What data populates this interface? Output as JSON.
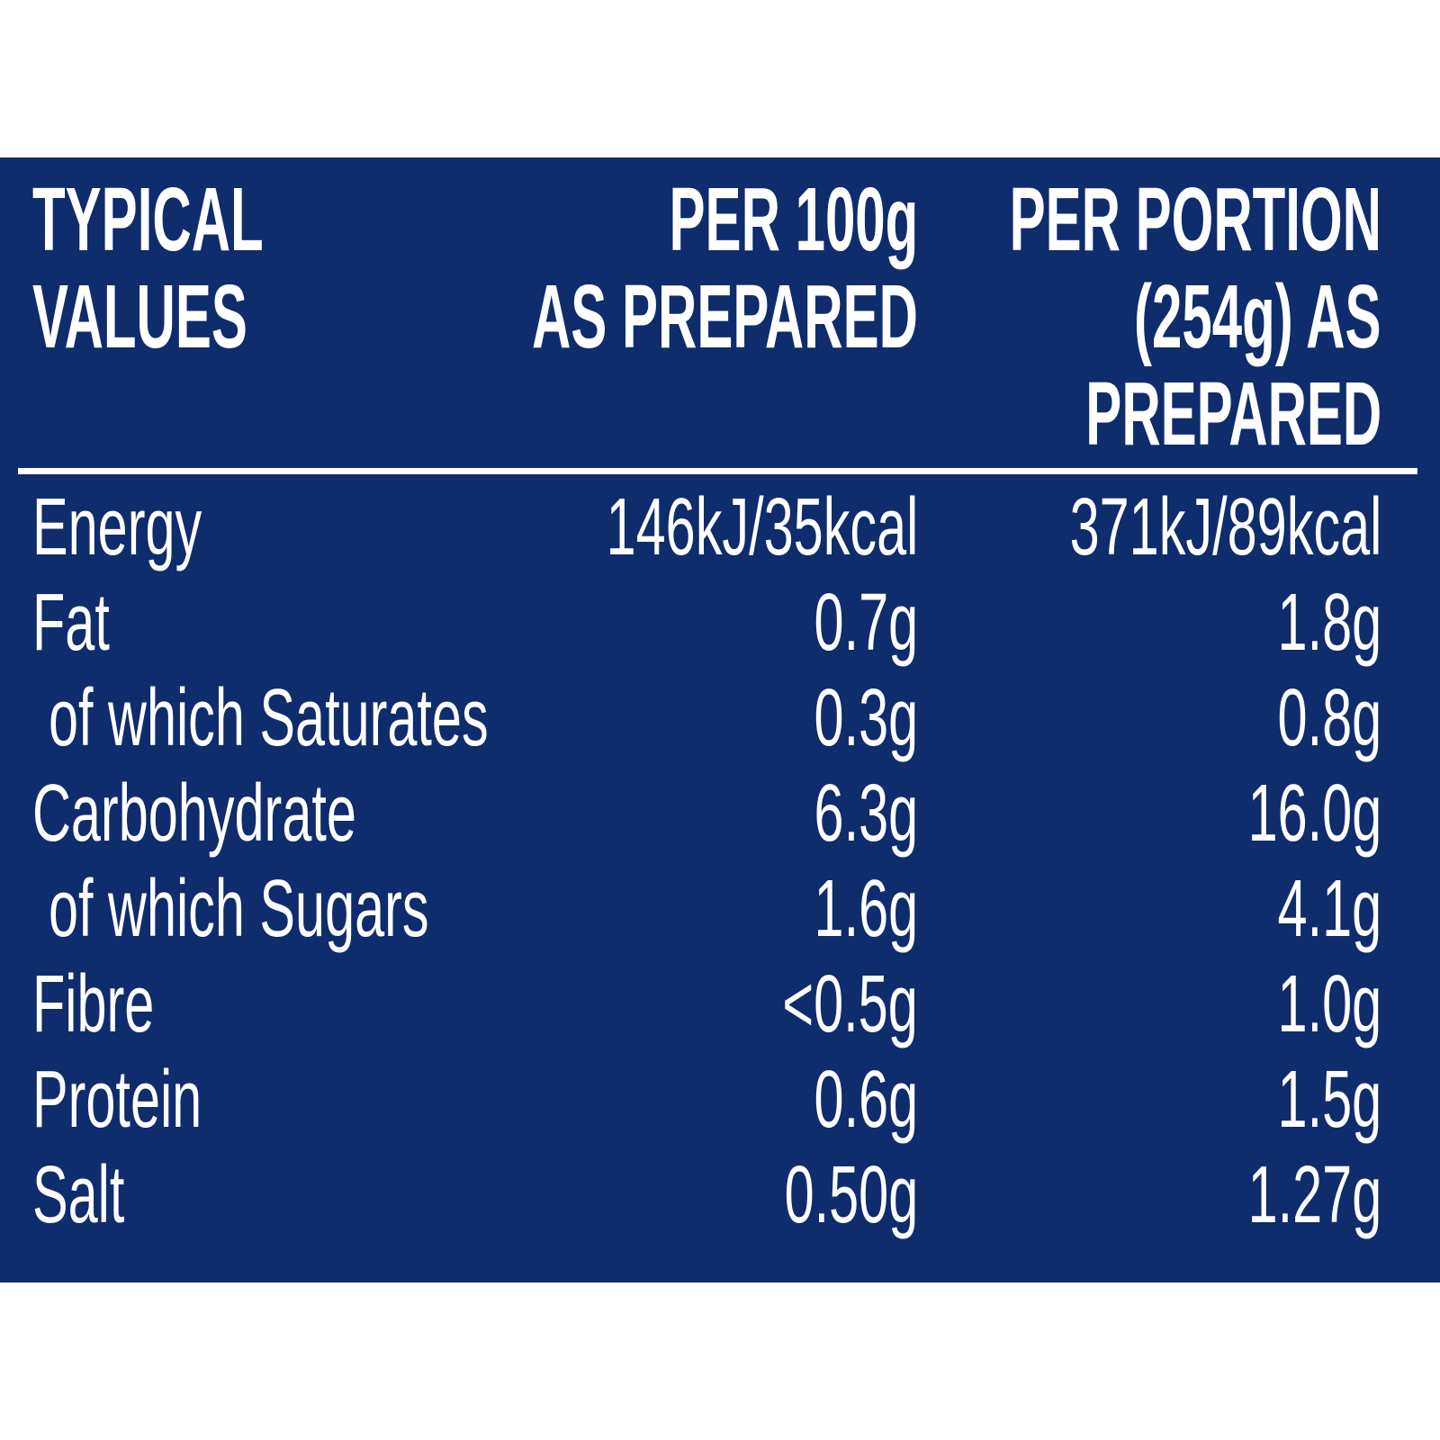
{
  "table": {
    "header": [
      [
        "TYPICAL",
        "VALUES"
      ],
      [
        "PER 100g",
        "AS PREPARED"
      ],
      [
        "PER PORTION",
        "(254g) AS",
        "PREPARED"
      ]
    ],
    "rows": [
      [
        "Energy",
        "146kJ/35kcal",
        "371kJ/89kcal"
      ],
      [
        "Fat",
        "0.7g",
        "1.8g"
      ],
      [
        "of which Saturates",
        "0.3g",
        "0.8g"
      ],
      [
        "Carbohydrate",
        "6.3g",
        "16.0g"
      ],
      [
        "of which Sugars",
        "1.6g",
        "4.1g"
      ],
      [
        "Fibre",
        "<0.5g",
        "1.0g"
      ],
      [
        "Protein",
        "0.6g",
        "1.5g"
      ],
      [
        "Salt",
        "0.50g",
        "1.27g"
      ]
    ]
  }
}
